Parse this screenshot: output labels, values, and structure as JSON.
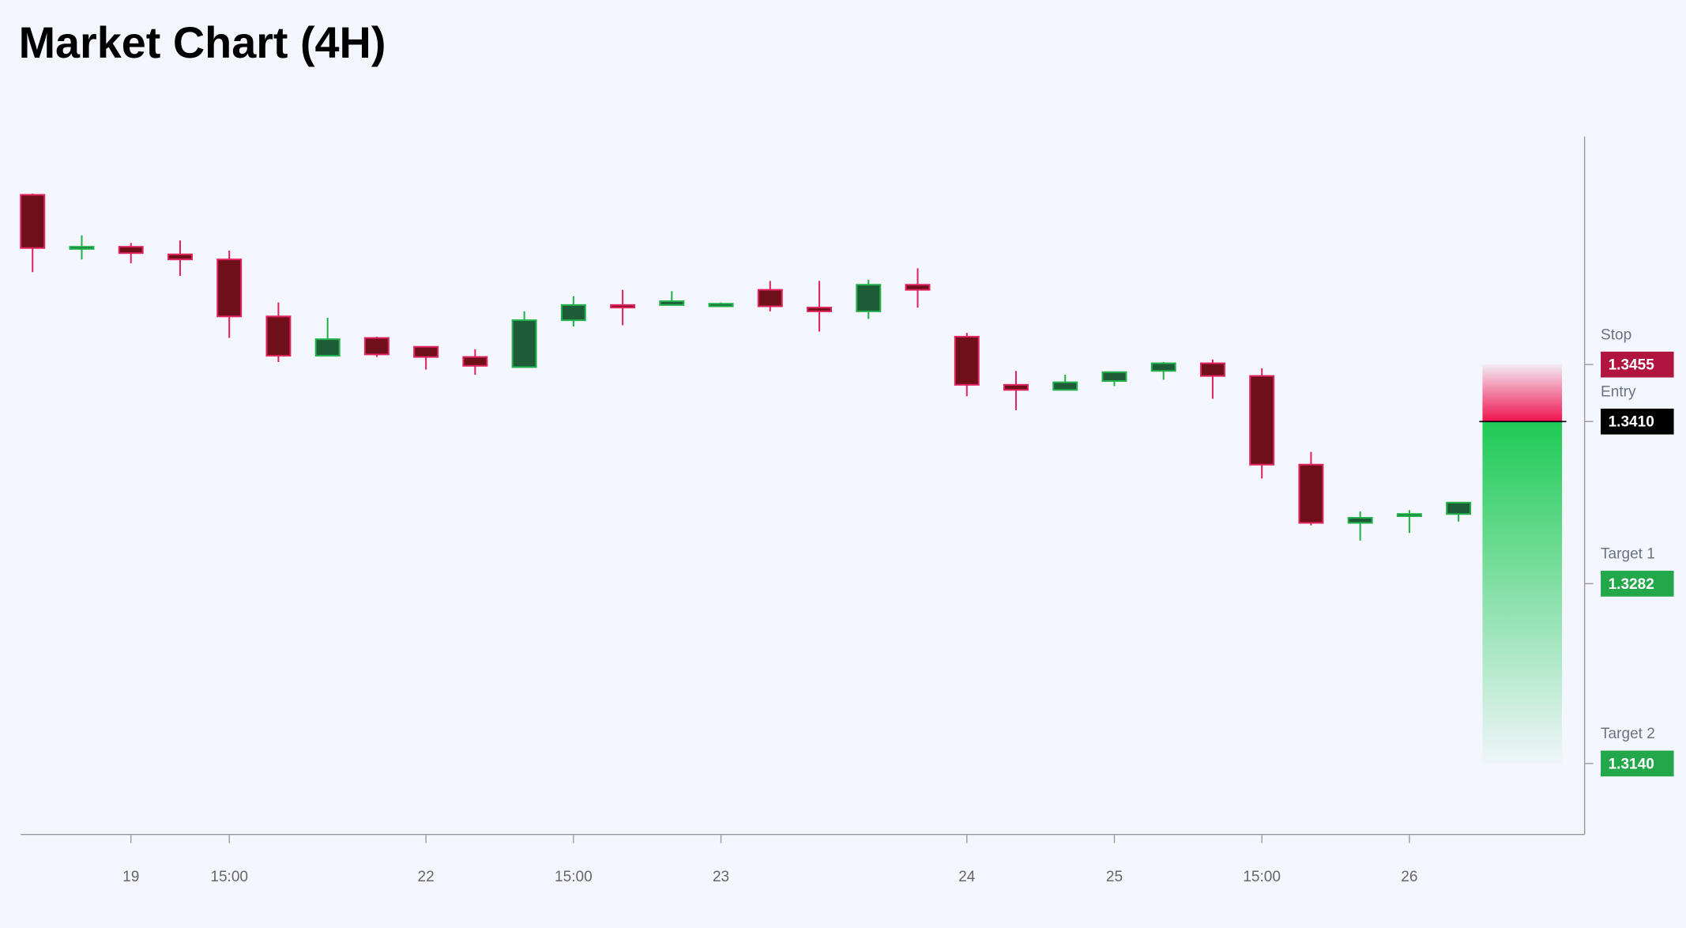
{
  "chart_data": {
    "type": "candlestick",
    "title": "Market Chart (4H)",
    "categories": [
      null,
      null,
      "19",
      null,
      "15:00",
      null,
      null,
      null,
      "22",
      null,
      null,
      "15:00",
      null,
      null,
      "23",
      null,
      null,
      null,
      null,
      "24",
      null,
      null,
      "25",
      null,
      null,
      "15:00",
      null,
      null,
      "26",
      null
    ],
    "open": [
      1.3589,
      1.3547,
      1.3548,
      1.3542,
      1.3538,
      1.3493,
      1.3462,
      1.3476,
      1.3469,
      1.3461,
      1.3453,
      1.349,
      1.3502,
      1.3502,
      1.3501,
      1.3514,
      1.35,
      1.3497,
      1.3518,
      1.3477,
      1.3439,
      1.3435,
      1.3442,
      1.345,
      1.3456,
      1.3446,
      1.3376,
      1.333,
      1.3336,
      1.3337
    ],
    "high": [
      1.359,
      1.3557,
      1.3551,
      1.3553,
      1.3545,
      1.3504,
      1.3492,
      1.3477,
      1.3469,
      1.3467,
      1.3497,
      1.3509,
      1.3514,
      1.3513,
      1.3504,
      1.3521,
      1.3521,
      1.3522,
      1.3531,
      1.348,
      1.345,
      1.3447,
      1.3449,
      1.3457,
      1.3459,
      1.3452,
      1.3386,
      1.3339,
      1.334,
      1.3346
    ],
    "low": [
      1.3528,
      1.3538,
      1.3535,
      1.3525,
      1.3476,
      1.3457,
      1.3462,
      1.3461,
      1.3451,
      1.3447,
      1.3453,
      1.3485,
      1.3486,
      1.3502,
      1.3501,
      1.3497,
      1.3481,
      1.3491,
      1.35,
      1.343,
      1.3419,
      1.3435,
      1.3438,
      1.3443,
      1.3428,
      1.3365,
      1.3328,
      1.3316,
      1.3322,
      1.3331
    ],
    "close": [
      1.3547,
      1.3548,
      1.3543,
      1.3538,
      1.3493,
      1.3462,
      1.3475,
      1.3463,
      1.3461,
      1.3454,
      1.349,
      1.3502,
      1.35,
      1.3505,
      1.3503,
      1.3501,
      1.3497,
      1.3518,
      1.3514,
      1.3439,
      1.3435,
      1.3441,
      1.3449,
      1.3456,
      1.3446,
      1.3376,
      1.333,
      1.3334,
      1.3337,
      1.3346
    ],
    "up_color": "#1e5c38",
    "up_border": "#22b14c",
    "down_color": "#6e0f1a",
    "down_border": "#e0245e",
    "ylim": [
      1.3084,
      1.3635
    ],
    "levels": [
      {
        "name": "Stop",
        "value": 1.3455,
        "value_label": "1.3455",
        "color": "#b0143f"
      },
      {
        "name": "Entry",
        "value": 1.341,
        "value_label": "1.3410",
        "color": "#000000"
      },
      {
        "name": "Target 1",
        "value": 1.3282,
        "value_label": "1.3282",
        "color": "#22a84a"
      },
      {
        "name": "Target 2",
        "value": 1.314,
        "value_label": "1.3140",
        "color": "#22a84a"
      }
    ]
  }
}
